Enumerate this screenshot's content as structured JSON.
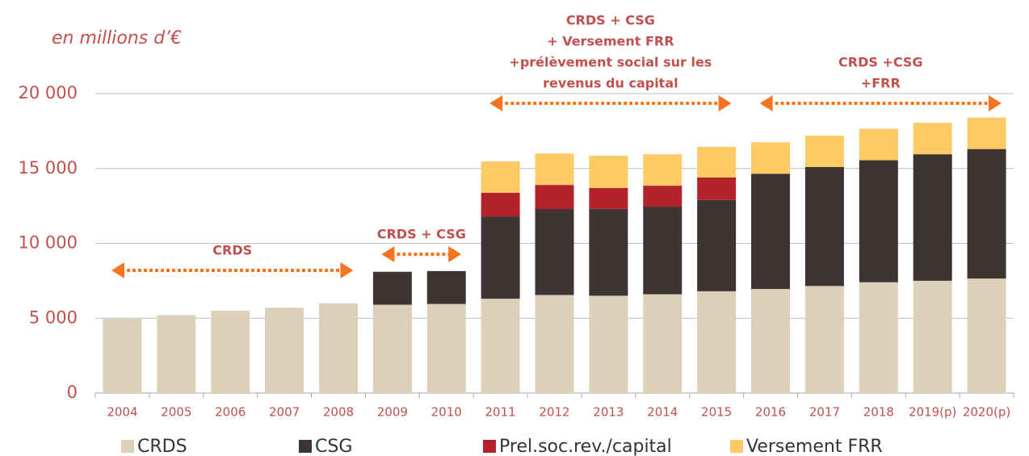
{
  "chart_data": {
    "type": "stacked_bar",
    "subtitle": "en millions d’€",
    "categories": [
      "2004",
      "2005",
      "2006",
      "2007",
      "2008",
      "2009",
      "2010",
      "2011",
      "2012",
      "2013",
      "2014",
      "2015",
      "2016",
      "2017",
      "2018",
      "2019(p)",
      "2020(p)"
    ],
    "series": [
      {
        "name": "CRDS",
        "color": "#ddd0b8",
        "values": [
          4950,
          5200,
          5500,
          5700,
          6000,
          5900,
          5950,
          6300,
          6550,
          6500,
          6600,
          6800,
          6950,
          7150,
          7400,
          7500,
          7650
        ]
      },
      {
        "name": "CSG",
        "color": "#3f3434",
        "values": [
          null,
          null,
          null,
          null,
          null,
          2200,
          2200,
          5500,
          5740,
          5800,
          5850,
          6100,
          7700,
          7950,
          8150,
          8450,
          8650
        ]
      },
      {
        "name": "Prel.soc.rev./capital",
        "color": "#b3222a",
        "values": [
          null,
          null,
          null,
          null,
          null,
          null,
          null,
          1570,
          1610,
          1400,
          1400,
          1500,
          null,
          null,
          null,
          null,
          null
        ]
      },
      {
        "name": "Versement FRR",
        "color": "#fdca64",
        "values": [
          null,
          null,
          null,
          null,
          null,
          null,
          null,
          2100,
          2100,
          2150,
          2100,
          2050,
          2100,
          2100,
          2100,
          2100,
          2100
        ]
      }
    ],
    "ylim": [
      0,
      20000
    ],
    "yticks": [
      0,
      {
        "value": 5000,
        "label": "5 000"
      },
      {
        "value": 10000,
        "label": "10 000"
      },
      {
        "value": 15000,
        "label": "15 000"
      },
      {
        "value": 20000,
        "label": "20 000"
      }
    ],
    "grid": true,
    "annotations": [
      {
        "lines": [
          "CRDS"
        ]
      },
      {
        "lines": [
          "CRDS + CSG"
        ]
      },
      {
        "lines": [
          "CRDS + CSG",
          "+ Versement FRR",
          "+prélèvement social sur les",
          "revenus du capital"
        ]
      },
      {
        "lines": [
          "CRDS +CSG",
          "+FRR"
        ]
      }
    ]
  }
}
